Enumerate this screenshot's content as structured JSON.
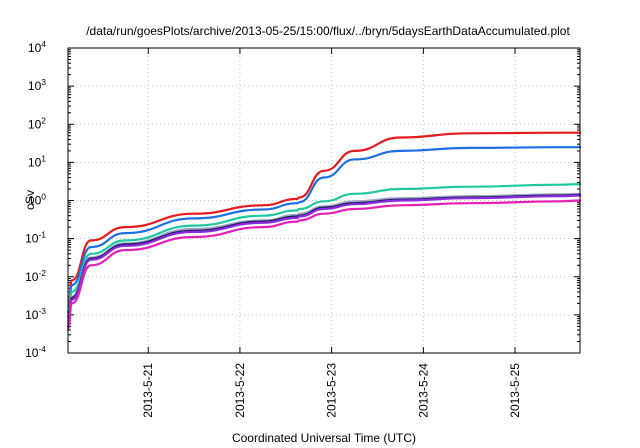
{
  "chart_data": {
    "type": "line",
    "title": "/data/run/goesPlots/archive/2013-05-25/15:00/flux/../bryn/5daysEarthDataAccumulated.plot",
    "xlabel": "Coordinated Universal Time (UTC)",
    "ylabel": "cSv",
    "yscale": "log",
    "ylim": [
      0.0001,
      10000
    ],
    "xlim": [
      "2013-05-20 03:00",
      "2013-05-25 17:00"
    ],
    "grid": true,
    "legend": "none",
    "x_ticks": [
      "2013-5-21",
      "2013-5-22",
      "2013-5-23",
      "2013-5-24",
      "2013-5-25"
    ],
    "y_ticks": [
      {
        "base": "10",
        "exp": "-4"
      },
      {
        "base": "10",
        "exp": "-3"
      },
      {
        "base": "10",
        "exp": "-2"
      },
      {
        "base": "10",
        "exp": "-1"
      },
      {
        "base": "10",
        "exp": "0"
      },
      {
        "base": "10",
        "exp": "1"
      },
      {
        "base": "10",
        "exp": "2"
      },
      {
        "base": "10",
        "exp": "3"
      },
      {
        "base": "10",
        "exp": "4"
      }
    ],
    "x": [
      "2013-05-20 03:00",
      "2013-05-20 04:00",
      "2013-05-20 09:00",
      "2013-05-20 18:00",
      "2013-05-21 12:00",
      "2013-05-22 06:00",
      "2013-05-22 15:00",
      "2013-05-22 15:30",
      "2013-05-22 22:00",
      "2013-05-23 06:00",
      "2013-05-23 18:00",
      "2013-05-24 12:00",
      "2013-05-25 12:00",
      "2013-05-25 17:00"
    ],
    "series": [
      {
        "color": "#e41a1c",
        "values": [
          0.0012,
          0.008,
          0.09,
          0.2,
          0.45,
          0.75,
          1.1,
          1.2,
          6,
          20,
          45,
          58,
          60,
          60
        ]
      },
      {
        "color": "#1f6fe5",
        "values": [
          0.0009,
          0.006,
          0.06,
          0.14,
          0.34,
          0.58,
          0.85,
          0.9,
          4,
          12,
          20,
          24,
          25,
          25
        ]
      },
      {
        "color": "#1ec8a0",
        "values": [
          0.0007,
          0.004,
          0.04,
          0.09,
          0.22,
          0.4,
          0.55,
          0.6,
          0.95,
          1.5,
          2.0,
          2.3,
          2.6,
          2.7
        ]
      },
      {
        "color": "#9aa6c8",
        "values": [
          0.0006,
          0.003,
          0.032,
          0.075,
          0.18,
          0.3,
          0.42,
          0.45,
          0.7,
          0.95,
          1.15,
          1.3,
          1.45,
          1.5
        ]
      },
      {
        "color": "#231a55",
        "values": [
          0.0005,
          0.0028,
          0.03,
          0.07,
          0.16,
          0.28,
          0.38,
          0.4,
          0.65,
          0.85,
          1.05,
          1.2,
          1.35,
          1.4
        ]
      },
      {
        "color": "#8a2be2",
        "values": [
          0.0005,
          0.0025,
          0.028,
          0.065,
          0.15,
          0.26,
          0.35,
          0.38,
          0.6,
          0.8,
          1.0,
          1.15,
          1.3,
          1.35
        ]
      },
      {
        "color": "#e61eb4",
        "values": [
          0.0004,
          0.002,
          0.02,
          0.05,
          0.11,
          0.2,
          0.28,
          0.3,
          0.45,
          0.6,
          0.75,
          0.85,
          0.95,
          1.0
        ]
      }
    ]
  }
}
